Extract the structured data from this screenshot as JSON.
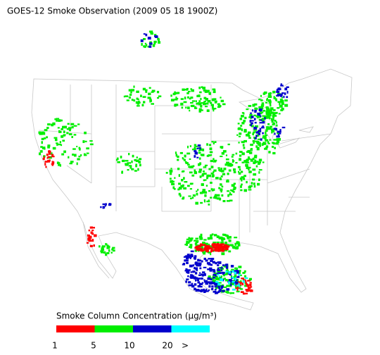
{
  "title": "GOES-12 Smoke Observation (2009 05 18  1900Z)",
  "legend": {
    "title": "Smoke Column Concentration (μg/m³)",
    "colors": [
      "#ff0000",
      "#00ee00",
      "#0000cc",
      "#00ffff"
    ],
    "labels": [
      "1",
      "5",
      "10",
      "20",
      ">"
    ]
  }
}
